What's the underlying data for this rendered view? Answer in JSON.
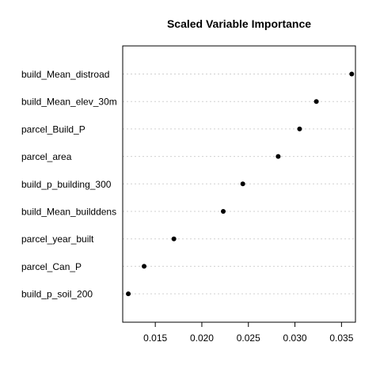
{
  "chart_data": {
    "type": "scatter",
    "title": "Scaled Variable Importance",
    "xlabel": "",
    "ylabel": "",
    "grid": "horizontal-dotted",
    "legend": "none",
    "point_color": "#000000",
    "xlim": [
      0.0115,
      0.0365
    ],
    "xticks": [
      0.015,
      0.02,
      0.025,
      0.03,
      0.035
    ],
    "xtick_labels": [
      "0.015",
      "0.020",
      "0.025",
      "0.030",
      "0.035"
    ],
    "categories": [
      "build_Mean_distroad",
      "build_Mean_elev_30m",
      "parcel_Build_P",
      "parcel_area",
      "build_p_building_300",
      "build_Mean_builddens",
      "parcel_year_built",
      "parcel_Can_P",
      "build_p_soil_200"
    ],
    "values": [
      0.0361,
      0.0323,
      0.0305,
      0.0282,
      0.0244,
      0.0223,
      0.017,
      0.0138,
      0.0121
    ]
  }
}
